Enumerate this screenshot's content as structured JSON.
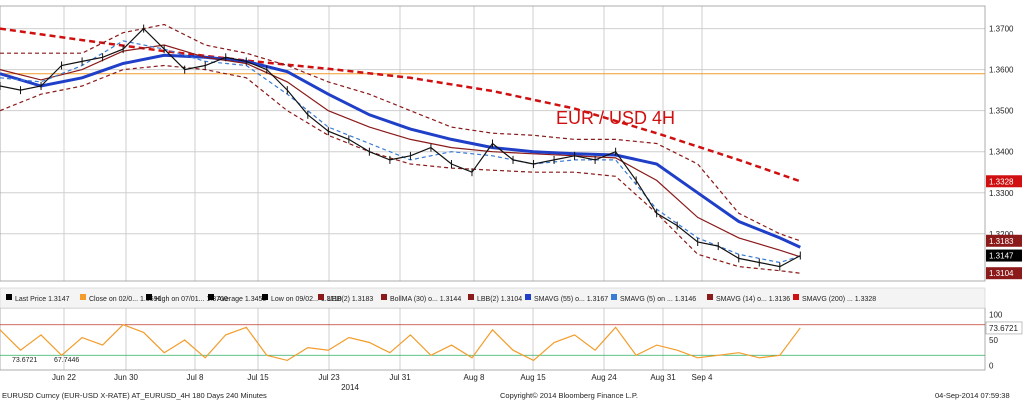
{
  "chart_data": {
    "type": "line",
    "instrument": "EURUSD Curncy (EUR-USD X-RATE) AT_EURUSD_4H 180 Days 240 Minutes",
    "annotation": "EUR / USD 4H",
    "x_tick_labels": [
      "Jun 22",
      "Jun 30",
      "Jul 8",
      "Jul 15",
      "Jul 23",
      "Jul 31",
      "Aug 8",
      "Aug 15",
      "Aug 24",
      "Aug 31",
      "Sep 4"
    ],
    "x_year_label": "2014",
    "y_ticks": [
      "1.3700",
      "1.3600",
      "1.3500",
      "1.3400",
      "1.3300",
      "1.3200"
    ],
    "ylim": [
      1.3085,
      1.3755
    ],
    "reference_line": 1.359,
    "legend": [
      {
        "label": "Last Price",
        "value": "1.3147",
        "color": "#000000"
      },
      {
        "label": "Close on 02/0...",
        "value": "1.3590",
        "color": "#f39c2b"
      },
      {
        "label": "High on 07/01...",
        "value": "1.3700",
        "color": "#000000"
      },
      {
        "label": "Average",
        "value": "1.3450",
        "color": "#000000"
      },
      {
        "label": "Low on 09/02...",
        "value": "1.3110",
        "color": "#000000"
      },
      {
        "label": "UBB(2)",
        "value": "1.3183",
        "color": "#8b1a1a"
      },
      {
        "label": "BollMA (30) o...",
        "value": "1.3144",
        "color": "#8b1a1a"
      },
      {
        "label": "LBB(2)",
        "value": "1.3104",
        "color": "#8b1a1a"
      },
      {
        "label": "SMAVG (55) o...",
        "value": "1.3167",
        "color": "#1f3fc8"
      },
      {
        "label": "SMAVG (5) on ...",
        "value": "1.3146",
        "color": "#3a7bd5"
      },
      {
        "label": "SMAVG (14) o...",
        "value": "1.3136",
        "color": "#8b1a1a"
      },
      {
        "label": "SMAVG (200) ...",
        "value": "1.3328",
        "color": "#d01010"
      }
    ],
    "right_boxes": [
      {
        "value": "1.3328",
        "color": "#d01010"
      },
      {
        "value": "1.3183",
        "color": "#8b1a1a"
      },
      {
        "value": "1.3147",
        "color": "#000000"
      },
      {
        "value": "1.3104",
        "color": "#8b1a1a"
      }
    ],
    "series": [
      {
        "name": "SMAVG (200)",
        "style": "dashed",
        "color": "#d01010",
        "x": [
          0,
          20,
          40,
          60,
          80,
          100,
          120,
          140,
          160,
          180,
          195
        ],
        "values": [
          1.37,
          1.3672,
          1.3645,
          1.3622,
          1.3602,
          1.358,
          1.3548,
          1.3505,
          1.3445,
          1.338,
          1.3328
        ]
      },
      {
        "name": "SMAVG (55)",
        "style": "solid",
        "color": "#1f3fc8",
        "x": [
          0,
          10,
          20,
          30,
          40,
          50,
          60,
          70,
          80,
          90,
          100,
          110,
          120,
          130,
          140,
          150,
          160,
          170,
          180,
          190,
          195
        ],
        "values": [
          1.359,
          1.356,
          1.358,
          1.3615,
          1.3635,
          1.363,
          1.362,
          1.3595,
          1.354,
          1.349,
          1.3455,
          1.343,
          1.341,
          1.34,
          1.3395,
          1.3392,
          1.337,
          1.33,
          1.323,
          1.319,
          1.3167
        ]
      },
      {
        "name": "BollMA (30)",
        "style": "solid",
        "color": "#8b1a1a",
        "x": [
          0,
          10,
          20,
          30,
          40,
          50,
          60,
          70,
          80,
          90,
          100,
          110,
          120,
          130,
          140,
          150,
          160,
          170,
          180,
          190,
          195
        ],
        "values": [
          1.36,
          1.3575,
          1.36,
          1.3645,
          1.366,
          1.363,
          1.3615,
          1.357,
          1.35,
          1.346,
          1.343,
          1.341,
          1.34,
          1.3395,
          1.339,
          1.3385,
          1.333,
          1.324,
          1.319,
          1.316,
          1.3144
        ]
      },
      {
        "name": "UBB(2)",
        "style": "dashed",
        "color": "#8b1a1a",
        "x": [
          0,
          10,
          20,
          30,
          40,
          50,
          60,
          70,
          80,
          90,
          100,
          110,
          120,
          130,
          140,
          150,
          160,
          170,
          180,
          190,
          195
        ],
        "values": [
          1.364,
          1.364,
          1.364,
          1.369,
          1.371,
          1.366,
          1.364,
          1.361,
          1.357,
          1.354,
          1.35,
          1.346,
          1.3445,
          1.344,
          1.343,
          1.343,
          1.342,
          1.337,
          1.325,
          1.32,
          1.3183
        ]
      },
      {
        "name": "LBB(2)",
        "style": "dashed",
        "color": "#8b1a1a",
        "x": [
          0,
          10,
          20,
          30,
          40,
          50,
          60,
          70,
          80,
          90,
          100,
          110,
          120,
          130,
          140,
          150,
          160,
          170,
          180,
          190,
          195
        ],
        "values": [
          1.35,
          1.354,
          1.356,
          1.36,
          1.361,
          1.36,
          1.358,
          1.35,
          1.344,
          1.34,
          1.337,
          1.336,
          1.3355,
          1.335,
          1.335,
          1.334,
          1.325,
          1.315,
          1.312,
          1.311,
          1.3104
        ]
      },
      {
        "name": "SMAVG (5)",
        "style": "dashed",
        "color": "#3a7bd5",
        "x": [
          0,
          10,
          20,
          30,
          40,
          50,
          60,
          70,
          80,
          90,
          100,
          110,
          120,
          130,
          140,
          150,
          160,
          170,
          180,
          190,
          195
        ],
        "values": [
          1.358,
          1.357,
          1.361,
          1.367,
          1.365,
          1.362,
          1.361,
          1.354,
          1.346,
          1.342,
          1.338,
          1.34,
          1.339,
          1.337,
          1.338,
          1.338,
          1.326,
          1.319,
          1.315,
          1.313,
          1.3146
        ]
      },
      {
        "name": "Last Price",
        "style": "solid",
        "color": "#111111",
        "x": [
          0,
          5,
          10,
          15,
          20,
          25,
          30,
          35,
          40,
          45,
          50,
          55,
          60,
          65,
          70,
          75,
          80,
          85,
          90,
          95,
          100,
          105,
          110,
          115,
          120,
          125,
          130,
          135,
          140,
          145,
          150,
          155,
          160,
          165,
          170,
          175,
          180,
          185,
          190,
          195
        ],
        "values": [
          1.356,
          1.355,
          1.356,
          1.361,
          1.362,
          1.363,
          1.365,
          1.37,
          1.365,
          1.36,
          1.361,
          1.363,
          1.362,
          1.36,
          1.355,
          1.349,
          1.345,
          1.343,
          1.34,
          1.338,
          1.339,
          1.341,
          1.337,
          1.335,
          1.342,
          1.338,
          1.337,
          1.338,
          1.339,
          1.338,
          1.34,
          1.333,
          1.325,
          1.322,
          1.318,
          1.317,
          1.314,
          1.313,
          1.312,
          1.3147
        ]
      }
    ],
    "indicator": {
      "y_ticks": [
        "100",
        "50",
        "0"
      ],
      "ylim": [
        -5,
        105
      ],
      "upper_line": 73.6721,
      "lower_line": 67.7446,
      "labels": [
        "73.6721",
        "67.7446"
      ],
      "box_value": "73.6721",
      "x": [
        0,
        5,
        10,
        15,
        20,
        25,
        30,
        35,
        40,
        45,
        50,
        55,
        60,
        65,
        70,
        75,
        80,
        85,
        90,
        95,
        100,
        105,
        110,
        115,
        120,
        125,
        130,
        135,
        140,
        145,
        150,
        155,
        160,
        165,
        170,
        175,
        180,
        185,
        190,
        195
      ],
      "values": [
        70,
        30,
        60,
        20,
        55,
        40,
        80,
        65,
        25,
        50,
        15,
        60,
        75,
        20,
        10,
        35,
        30,
        55,
        45,
        25,
        60,
        20,
        40,
        15,
        70,
        30,
        10,
        45,
        60,
        30,
        75,
        20,
        40,
        30,
        15,
        20,
        25,
        15,
        20,
        74
      ]
    },
    "footer_left": "EURUSD Curncy (EUR-USD X-RATE) AT_EURUSD_4H 180 Days 240 Minutes",
    "footer_center": "Copyright© 2014 Bloomberg Finance L.P.",
    "footer_right": "04-Sep-2014 07:59:38"
  }
}
